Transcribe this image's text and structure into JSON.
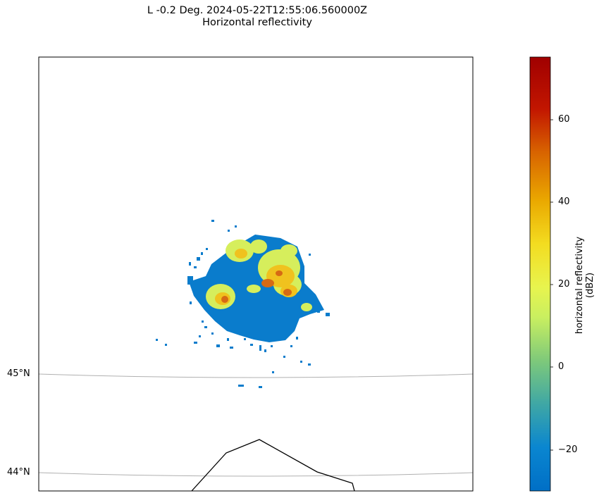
{
  "title": {
    "line1": "L -0.2 Deg. 2024-05-22T12:55:06.560000Z",
    "line2": "Horizontal reflectivity"
  },
  "map": {
    "gridlines": [
      "45°N",
      "44°N"
    ]
  },
  "colorbar": {
    "label": "horizontal reflectivity (dBZ)",
    "range": [
      -30,
      75
    ],
    "ticks": [
      "60",
      "40",
      "20",
      "0",
      "−20"
    ],
    "colors": [
      "#006fc6",
      "#0a86d0",
      "#3fa7a5",
      "#7ec97a",
      "#c9ef60",
      "#e8f44e",
      "#f3dc20",
      "#eaa800",
      "#d86400",
      "#c21600",
      "#a00000"
    ]
  }
}
